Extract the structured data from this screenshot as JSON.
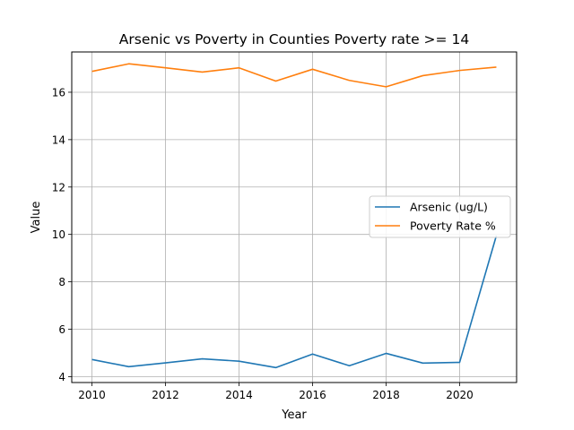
{
  "chart_data": {
    "type": "line",
    "title": "Arsenic vs Poverty in Counties Poverty rate >= 14",
    "xlabel": "Year",
    "ylabel": "Value",
    "x": [
      2010,
      2011,
      2012,
      2013,
      2014,
      2015,
      2016,
      2017,
      2018,
      2019,
      2020,
      2021
    ],
    "xlim": [
      2009.45,
      2021.55
    ],
    "ylim": [
      3.75,
      17.7
    ],
    "xticks": [
      2010,
      2012,
      2014,
      2016,
      2018,
      2020
    ],
    "yticks": [
      4,
      6,
      8,
      10,
      12,
      14,
      16
    ],
    "grid": true,
    "legend": "center-right",
    "series": [
      {
        "name": "Arsenic (ug/L)",
        "color": "#1f77b4",
        "values": [
          4.72,
          4.42,
          4.58,
          4.75,
          4.65,
          4.38,
          4.95,
          4.46,
          4.98,
          4.57,
          4.6,
          9.95
        ]
      },
      {
        "name": "Poverty Rate %",
        "color": "#ff7f0e",
        "values": [
          16.88,
          17.2,
          17.03,
          16.85,
          17.03,
          16.47,
          16.97,
          16.5,
          16.23,
          16.7,
          16.92,
          17.06
        ]
      }
    ]
  }
}
